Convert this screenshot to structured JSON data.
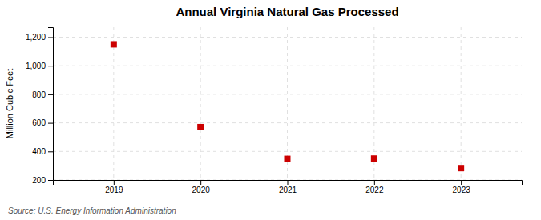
{
  "chart_data": {
    "type": "scatter",
    "title": "Annual Virginia Natural Gas Processed",
    "ylabel": "Million Cubic Feet",
    "annotations": [
      "Source: U.S. Energy Information Administration"
    ],
    "x": [
      2019,
      2020,
      2021,
      2022,
      2023
    ],
    "values": [
      1150,
      570,
      348,
      350,
      283
    ],
    "color": "#cc0000",
    "marker": "square",
    "xlim": [
      2018.3,
      2023.7
    ],
    "xticks": [
      2019,
      2020,
      2021,
      2022,
      2023
    ],
    "ylim": [
      200,
      1270
    ],
    "yticks": [
      200,
      400,
      600,
      800,
      {
        "value": 1000,
        "label": "1,000"
      },
      {
        "value": 1200,
        "label": "1,200"
      }
    ],
    "grid": true
  }
}
